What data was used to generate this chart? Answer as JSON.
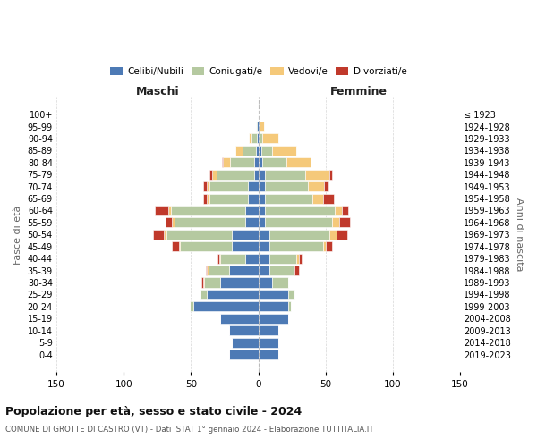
{
  "age_groups": [
    "0-4",
    "5-9",
    "10-14",
    "15-19",
    "20-24",
    "25-29",
    "30-34",
    "35-39",
    "40-44",
    "45-49",
    "50-54",
    "55-59",
    "60-64",
    "65-69",
    "70-74",
    "75-79",
    "80-84",
    "85-89",
    "90-94",
    "95-99",
    "100+"
  ],
  "birth_years": [
    "2019-2023",
    "2014-2018",
    "2009-2013",
    "2004-2008",
    "1999-2003",
    "1994-1998",
    "1989-1993",
    "1984-1988",
    "1979-1983",
    "1974-1978",
    "1969-1973",
    "1964-1968",
    "1959-1963",
    "1954-1958",
    "1949-1953",
    "1944-1948",
    "1939-1943",
    "1934-1938",
    "1929-1933",
    "1924-1928",
    "≤ 1923"
  ],
  "maschi_celibi": [
    22,
    20,
    22,
    28,
    48,
    38,
    28,
    22,
    10,
    20,
    20,
    10,
    10,
    8,
    8,
    3,
    3,
    2,
    1,
    1,
    0
  ],
  "maschi_coniugati": [
    0,
    0,
    0,
    0,
    3,
    5,
    12,
    15,
    18,
    38,
    48,
    52,
    55,
    28,
    28,
    28,
    18,
    10,
    4,
    1,
    0
  ],
  "maschi_vedovi": [
    0,
    0,
    0,
    0,
    0,
    0,
    1,
    1,
    1,
    1,
    2,
    2,
    2,
    2,
    2,
    3,
    5,
    5,
    2,
    0,
    0
  ],
  "maschi_divorziati": [
    0,
    0,
    0,
    0,
    0,
    0,
    1,
    1,
    1,
    5,
    8,
    5,
    10,
    3,
    3,
    2,
    1,
    0,
    0,
    0,
    0
  ],
  "femmine_nubili": [
    15,
    15,
    15,
    22,
    22,
    22,
    10,
    8,
    8,
    8,
    8,
    5,
    5,
    5,
    5,
    5,
    3,
    2,
    1,
    1,
    0
  ],
  "femmine_coniugate": [
    0,
    0,
    0,
    0,
    2,
    5,
    12,
    18,
    20,
    40,
    45,
    50,
    52,
    35,
    32,
    30,
    18,
    8,
    2,
    0,
    0
  ],
  "femmine_vedove": [
    0,
    0,
    0,
    0,
    0,
    0,
    0,
    1,
    2,
    2,
    5,
    5,
    5,
    8,
    12,
    18,
    18,
    18,
    12,
    3,
    0
  ],
  "femmine_divorziate": [
    0,
    0,
    0,
    0,
    0,
    0,
    0,
    3,
    2,
    5,
    8,
    8,
    5,
    8,
    3,
    2,
    0,
    0,
    0,
    0,
    0
  ],
  "colors": {
    "celibi_nubili": "#4d7ab5",
    "coniugati": "#b5c9a0",
    "vedovi": "#f5c97a",
    "divorziati": "#c0392b"
  },
  "xlim": 150,
  "title": "Popolazione per età, sesso e stato civile - 2024",
  "subtitle": "COMUNE DI GROTTE DI CASTRO (VT) - Dati ISTAT 1° gennaio 2024 - Elaborazione TUTTITALIA.IT",
  "xlabel_left": "Maschi",
  "xlabel_right": "Femmine",
  "ylabel_left": "Fasce di età",
  "ylabel_right": "Anni di nascita"
}
